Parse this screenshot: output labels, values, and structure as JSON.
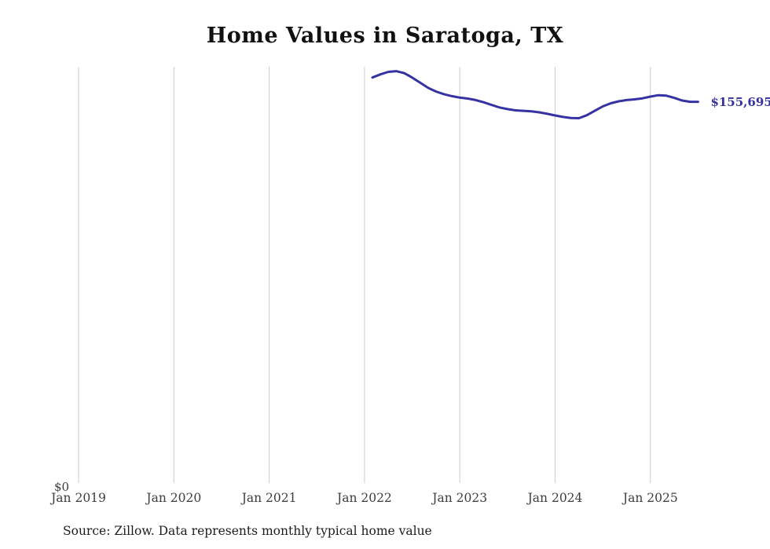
{
  "chart_data": {
    "type": "line",
    "title": "Home Values in Saratoga, TX",
    "xlabel": "",
    "ylabel": "",
    "ylim": [
      0,
      170000
    ],
    "grid": "vertical-only",
    "legend": "none",
    "line_color": "#3632a3",
    "gridline_color": "#cccccc",
    "x_tick_labels": [
      "Jan 2019",
      "Jan 2020",
      "Jan 2021",
      "Jan 2022",
      "Jan 2023",
      "Jan 2024",
      "Jan 2025"
    ],
    "y_zero_label": "$0",
    "end_label": "$155,695",
    "source": "Source: Zillow. Data represents monthly typical home value",
    "series": [
      {
        "name": "Monthly typical home value",
        "x": [
          "2022-02",
          "2022-03",
          "2022-04",
          "2022-05",
          "2022-06",
          "2022-07",
          "2022-08",
          "2022-09",
          "2022-10",
          "2022-11",
          "2022-12",
          "2023-01",
          "2023-02",
          "2023-03",
          "2023-04",
          "2023-05",
          "2023-06",
          "2023-07",
          "2023-08",
          "2023-09",
          "2023-10",
          "2023-11",
          "2023-12",
          "2024-01",
          "2024-02",
          "2024-03",
          "2024-04",
          "2024-05",
          "2024-06",
          "2024-07",
          "2024-08",
          "2024-09",
          "2024-10",
          "2024-11",
          "2024-12",
          "2025-01",
          "2025-02",
          "2025-03",
          "2025-04",
          "2025-05",
          "2025-06",
          "2025-07"
        ],
        "values": [
          165600,
          166900,
          167900,
          168200,
          167400,
          165600,
          163500,
          161400,
          159900,
          158800,
          158000,
          157400,
          157000,
          156400,
          155500,
          154400,
          153400,
          152700,
          152200,
          152000,
          151800,
          151400,
          150800,
          150100,
          149500,
          149100,
          149000,
          150200,
          152000,
          153800,
          155100,
          155900,
          156400,
          156700,
          157100,
          157800,
          158400,
          158200,
          157300,
          156200,
          155700,
          155695
        ]
      }
    ]
  }
}
